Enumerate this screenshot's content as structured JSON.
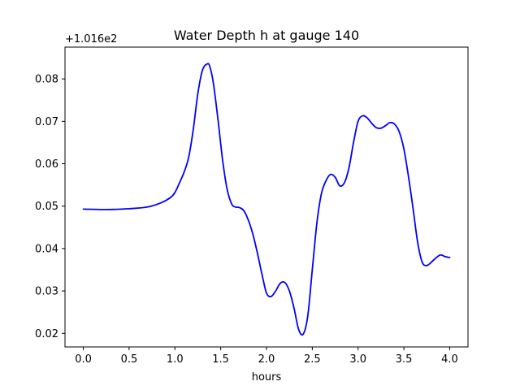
{
  "chart_data": {
    "type": "line",
    "title": "Water Depth h at gauge 140",
    "xlabel": "hours",
    "ylabel": "",
    "y_offset_label": "+1.016e2",
    "xlim": [
      -0.2,
      4.2
    ],
    "ylim": [
      0.0168,
      0.0875
    ],
    "xticks": [
      0.0,
      0.5,
      1.0,
      1.5,
      2.0,
      2.5,
      3.0,
      3.5,
      4.0
    ],
    "xtick_labels": [
      "0.0",
      "0.5",
      "1.0",
      "1.5",
      "2.0",
      "2.5",
      "3.0",
      "3.5",
      "4.0"
    ],
    "yticks": [
      0.02,
      0.03,
      0.04,
      0.05,
      0.06,
      0.07,
      0.08
    ],
    "ytick_labels": [
      "0.02",
      "0.03",
      "0.04",
      "0.05",
      "0.06",
      "0.07",
      "0.08"
    ],
    "grid": false,
    "line_color": "#0000ff",
    "series": [
      {
        "x": [
          0.0,
          0.25,
          0.5,
          0.7,
          0.85,
          0.95,
          1.0,
          1.05,
          1.1,
          1.15,
          1.2,
          1.25,
          1.3,
          1.35,
          1.38,
          1.42,
          1.47,
          1.52,
          1.57,
          1.62,
          1.66,
          1.7,
          1.75,
          1.8,
          1.85,
          1.9,
          1.95,
          2.0,
          2.05,
          2.1,
          2.15,
          2.2,
          2.25,
          2.3,
          2.35,
          2.4,
          2.45,
          2.5,
          2.55,
          2.6,
          2.65,
          2.7,
          2.75,
          2.8,
          2.85,
          2.9,
          2.95,
          3.0,
          3.05,
          3.1,
          3.15,
          3.2,
          3.25,
          3.3,
          3.35,
          3.4,
          3.45,
          3.5,
          3.55,
          3.6,
          3.65,
          3.7,
          3.75,
          3.8,
          3.85,
          3.9,
          3.95,
          4.0
        ],
        "y": [
          0.0493,
          0.0492,
          0.0494,
          0.0498,
          0.0508,
          0.052,
          0.0532,
          0.0555,
          0.058,
          0.0615,
          0.068,
          0.0765,
          0.082,
          0.0835,
          0.083,
          0.079,
          0.0705,
          0.061,
          0.054,
          0.0505,
          0.0498,
          0.0497,
          0.049,
          0.0468,
          0.0435,
          0.039,
          0.034,
          0.0295,
          0.0287,
          0.03,
          0.0318,
          0.032,
          0.03,
          0.026,
          0.021,
          0.0198,
          0.024,
          0.035,
          0.046,
          0.053,
          0.056,
          0.0575,
          0.0568,
          0.0548,
          0.0555,
          0.059,
          0.065,
          0.07,
          0.0713,
          0.0708,
          0.0695,
          0.0685,
          0.0684,
          0.069,
          0.0697,
          0.0693,
          0.0675,
          0.0635,
          0.057,
          0.0495,
          0.0415,
          0.0368,
          0.036,
          0.0368,
          0.0378,
          0.0385,
          0.0381,
          0.0379
        ]
      }
    ]
  }
}
